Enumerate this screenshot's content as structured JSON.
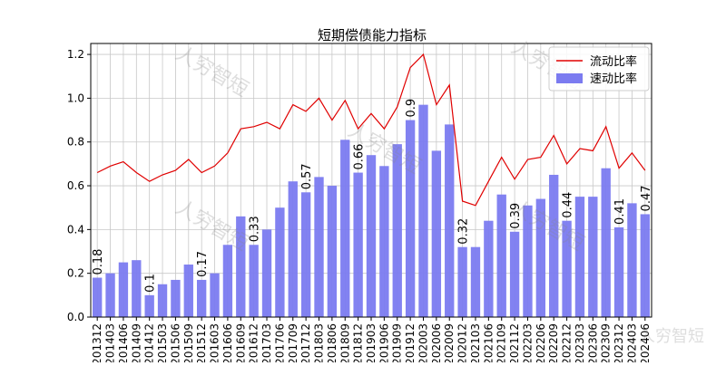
{
  "chart_data": {
    "type": "bar",
    "title": "短期偿债能力指标",
    "categories": [
      "201312",
      "201403",
      "201406",
      "201409",
      "201412",
      "201503",
      "201506",
      "201509",
      "201512",
      "201603",
      "201606",
      "201609",
      "201612",
      "201703",
      "201706",
      "201709",
      "201712",
      "201803",
      "201806",
      "201809",
      "201812",
      "201903",
      "201906",
      "201909",
      "201912",
      "202003",
      "202006",
      "202009",
      "202012",
      "202103",
      "202106",
      "202109",
      "202112",
      "202203",
      "202206",
      "202209",
      "202212",
      "202303",
      "202306",
      "202309",
      "202312",
      "202403",
      "202406"
    ],
    "ylim": [
      0,
      1.25
    ],
    "yticks": [
      "0.0",
      "0.2",
      "0.4",
      "0.6",
      "0.8",
      "1.0",
      "1.2"
    ],
    "grid": true,
    "legend_position": "top-right",
    "series": [
      {
        "name": "流动比率",
        "kind": "line",
        "color": "#e00000",
        "values": [
          0.66,
          0.69,
          0.71,
          0.66,
          0.62,
          0.65,
          0.67,
          0.72,
          0.66,
          0.69,
          0.75,
          0.86,
          0.87,
          0.89,
          0.86,
          0.97,
          0.94,
          1.0,
          0.9,
          0.99,
          0.86,
          0.93,
          0.86,
          0.96,
          1.14,
          1.2,
          0.97,
          1.06,
          0.53,
          0.51,
          0.62,
          0.73,
          0.63,
          0.72,
          0.73,
          0.83,
          0.7,
          0.77,
          0.76,
          0.87,
          0.68,
          0.75,
          0.67
        ]
      },
      {
        "name": "速动比率",
        "kind": "bar",
        "color": "#7b7bf0",
        "values": [
          0.18,
          0.2,
          0.25,
          0.26,
          0.1,
          0.15,
          0.17,
          0.24,
          0.17,
          0.2,
          0.33,
          0.46,
          0.33,
          0.4,
          0.5,
          0.62,
          0.57,
          0.64,
          0.6,
          0.81,
          0.66,
          0.74,
          0.69,
          0.79,
          0.9,
          0.97,
          0.76,
          0.88,
          0.32,
          0.32,
          0.44,
          0.56,
          0.39,
          0.51,
          0.54,
          0.65,
          0.44,
          0.55,
          0.55,
          0.68,
          0.41,
          0.52,
          0.47
        ]
      }
    ],
    "data_labels": [
      {
        "category": "201312",
        "text": "0.18"
      },
      {
        "category": "201412",
        "text": "0.1"
      },
      {
        "category": "201512",
        "text": "0.17"
      },
      {
        "category": "201612",
        "text": "0.33"
      },
      {
        "category": "201712",
        "text": "0.57"
      },
      {
        "category": "201812",
        "text": "0.66"
      },
      {
        "category": "201912",
        "text": "0.9"
      },
      {
        "category": "202012",
        "text": "0.32"
      },
      {
        "category": "202112",
        "text": "0.39"
      },
      {
        "category": "202212",
        "text": "0.44"
      },
      {
        "category": "202312",
        "text": "0.41"
      },
      {
        "category": "202406",
        "text": "0.47"
      }
    ],
    "watermark": "人穷智短"
  }
}
